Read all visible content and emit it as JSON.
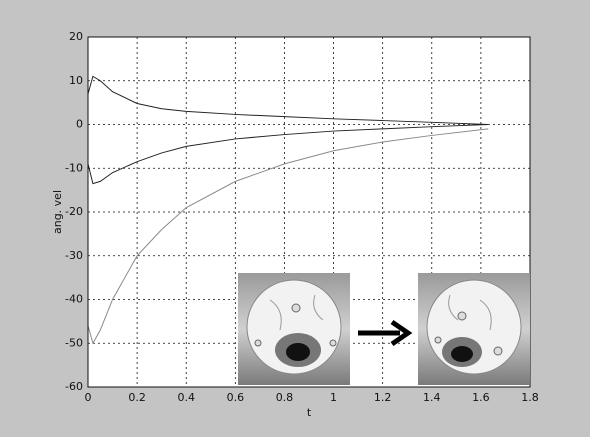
{
  "chart_data": {
    "type": "line",
    "x_label": "t",
    "y_label": "ang. vel",
    "x": [
      0,
      0.02,
      0.05,
      0.1,
      0.2,
      0.3,
      0.4,
      0.6,
      0.8,
      1.0,
      1.2,
      1.4,
      1.63
    ],
    "series": [
      {
        "color": "#222222",
        "values": [
          7,
          11,
          10,
          7.5,
          4.8,
          3.6,
          3,
          2.3,
          1.8,
          1.3,
          0.9,
          0.5,
          0
        ]
      },
      {
        "color": "#222222",
        "values": [
          -9,
          -13.5,
          -13,
          -11,
          -8.5,
          -6.5,
          -5,
          -3.3,
          -2.3,
          -1.5,
          -1,
          -0.5,
          0
        ]
      },
      {
        "color": "#8a8a8a",
        "values": [
          -46,
          -50,
          -47,
          -40,
          -30,
          -24,
          -19,
          -13,
          -9,
          -6,
          -4,
          -2.5,
          -1
        ]
      }
    ],
    "xlim": [
      0,
      1.8
    ],
    "xticks": [
      0,
      0.2,
      0.4,
      0.6,
      0.8,
      1,
      1.2,
      1.4,
      1.6,
      1.8
    ],
    "ylim": [
      -60,
      20
    ],
    "yticks": [
      -60,
      -50,
      -40,
      -30,
      -20,
      -10,
      0,
      10,
      20
    ],
    "grid": true
  }
}
